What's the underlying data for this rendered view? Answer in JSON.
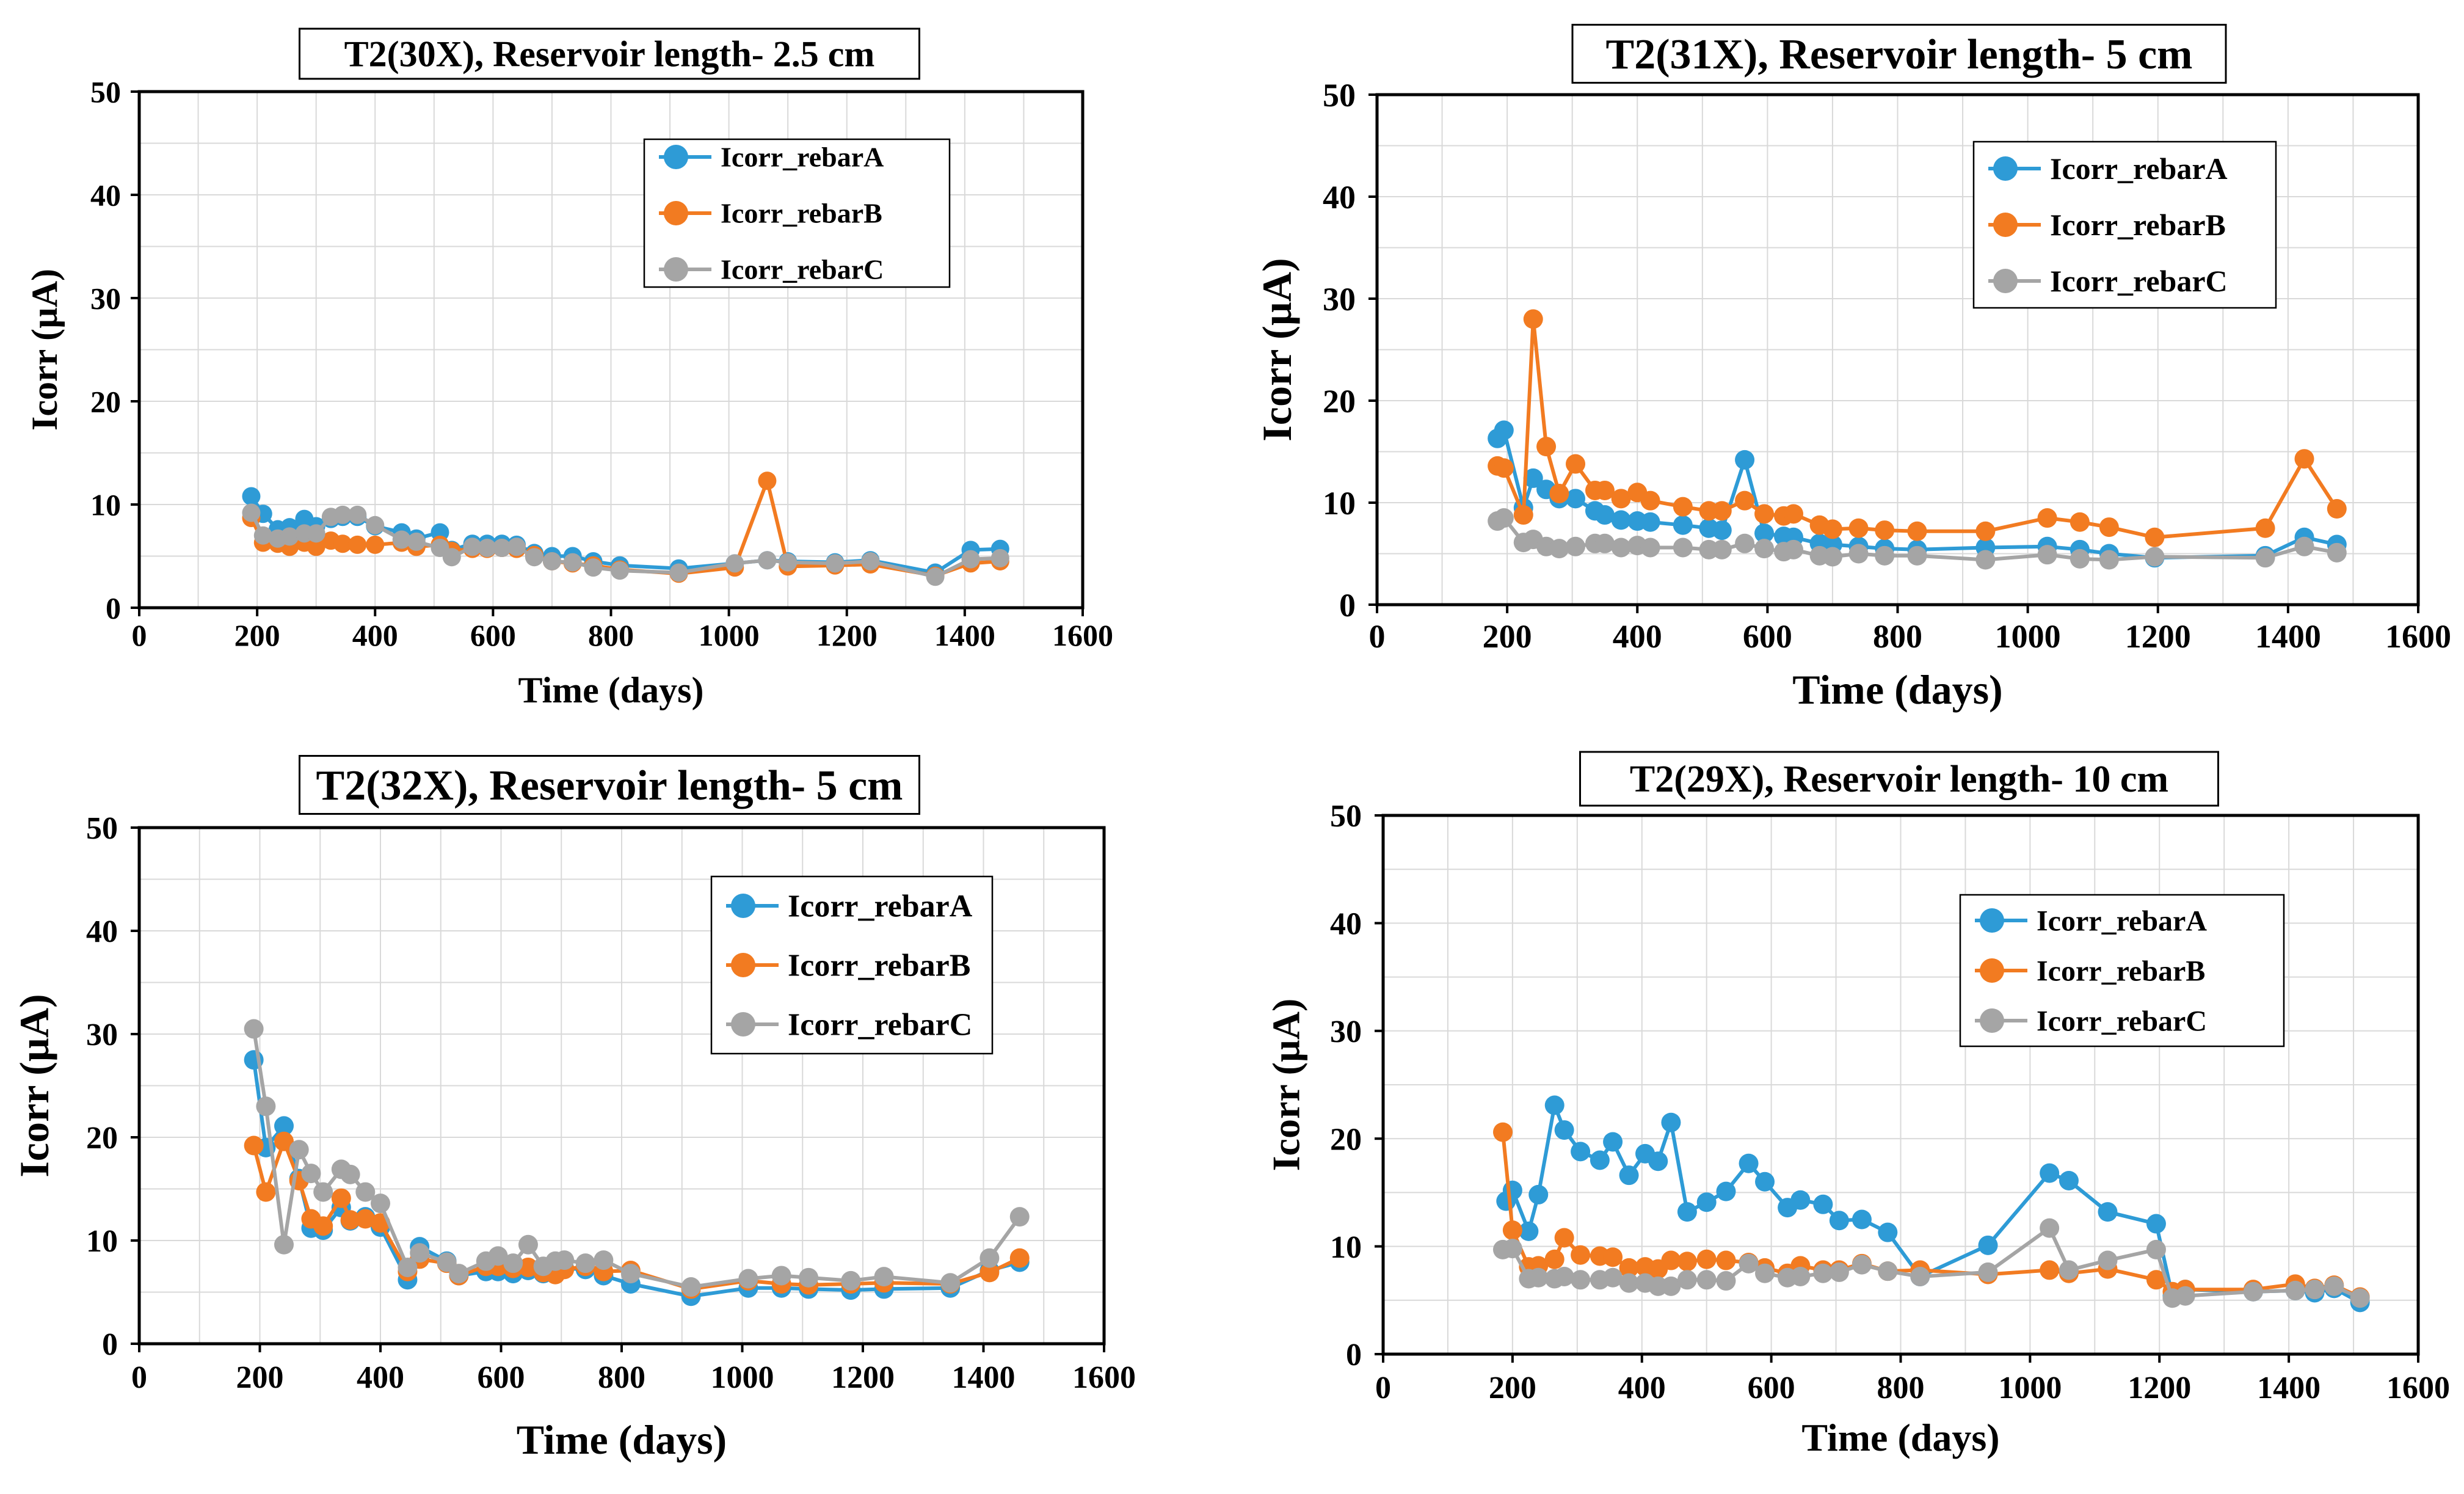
{
  "colors": {
    "rebarA": "#2e9bd6",
    "rebarB": "#f27b21",
    "rebarC": "#a5a5a5",
    "grid": "#d9d9d9"
  },
  "chart_data": [
    {
      "type": "line",
      "title": "T2(30X), Reservoir length- 2.5 cm",
      "xlabel": "Time (days)",
      "ylabel": "Icorr (µA)",
      "xlim": [
        0,
        1600
      ],
      "ylim": [
        0,
        50
      ],
      "xticks": [
        "0",
        "200",
        "400",
        "600",
        "800",
        "1000",
        "1200",
        "1400",
        "1600"
      ],
      "yticks": [
        "0",
        "10",
        "20",
        "30",
        "40",
        "50"
      ],
      "legend": [
        "Icorr_rebarA",
        "Icorr_rebarB",
        "Icorr_rebarC"
      ],
      "series": [
        {
          "name": "Icorr_rebarA",
          "color": "rebarA",
          "x": [
            190,
            210,
            235,
            255,
            280,
            300,
            325,
            345,
            370,
            400,
            445,
            470,
            510,
            530,
            565,
            590,
            615,
            640,
            670,
            700,
            735,
            770,
            815,
            915,
            1010,
            1065,
            1100,
            1180,
            1240,
            1350,
            1410,
            1460
          ],
          "y": [
            10.8,
            9.1,
            7.6,
            7.8,
            8.6,
            7.9,
            8.6,
            8.8,
            8.8,
            7.9,
            7.3,
            6.7,
            7.3,
            5.6,
            6.2,
            6.2,
            6.2,
            6.1,
            5.3,
            5.0,
            5.0,
            4.5,
            4.1,
            3.8,
            4.3,
            4.6,
            4.5,
            4.4,
            4.6,
            3.4,
            5.6,
            5.7
          ]
        },
        {
          "name": "Icorr_rebarB",
          "color": "rebarB",
          "x": [
            190,
            210,
            235,
            255,
            280,
            300,
            325,
            345,
            370,
            400,
            445,
            470,
            510,
            530,
            565,
            590,
            615,
            640,
            670,
            700,
            735,
            770,
            815,
            915,
            1010,
            1065,
            1100,
            1180,
            1240,
            1350,
            1410,
            1460
          ],
          "y": [
            8.7,
            6.3,
            6.2,
            5.9,
            6.3,
            5.9,
            6.5,
            6.2,
            6.1,
            6.1,
            6.3,
            5.9,
            6.1,
            5.5,
            5.7,
            5.7,
            5.8,
            5.7,
            5.1,
            4.5,
            4.3,
            4.1,
            3.7,
            3.3,
            3.9,
            12.3,
            4.0,
            4.1,
            4.2,
            3.1,
            4.3,
            4.5
          ]
        },
        {
          "name": "Icorr_rebarC",
          "color": "rebarC",
          "x": [
            190,
            210,
            235,
            255,
            280,
            300,
            325,
            345,
            370,
            400,
            445,
            470,
            510,
            530,
            565,
            590,
            615,
            640,
            670,
            700,
            735,
            770,
            815,
            915,
            1010,
            1065,
            1100,
            1180,
            1240,
            1350,
            1410,
            1460
          ],
          "y": [
            9.2,
            7.0,
            6.7,
            6.9,
            7.2,
            7.2,
            8.8,
            9.0,
            9.0,
            8.0,
            6.6,
            6.4,
            5.8,
            4.9,
            5.9,
            5.8,
            5.8,
            5.9,
            4.9,
            4.5,
            4.4,
            3.9,
            3.6,
            3.4,
            4.3,
            4.6,
            4.4,
            4.3,
            4.5,
            3.0,
            4.7,
            4.8
          ]
        }
      ]
    },
    {
      "type": "line",
      "title": "T2(31X), Reservoir length- 5 cm",
      "xlabel": "Time (days)",
      "ylabel": "Icorr (µA)",
      "xlim": [
        0,
        1600
      ],
      "ylim": [
        0,
        50
      ],
      "xticks": [
        "0",
        "200",
        "400",
        "600",
        "800",
        "1000",
        "1200",
        "1400",
        "1600"
      ],
      "yticks": [
        "0",
        "10",
        "20",
        "30",
        "40",
        "50"
      ],
      "legend": [
        "Icorr_rebarA",
        "Icorr_rebarB",
        "Icorr_rebarC"
      ],
      "series": [
        {
          "name": "Icorr_rebarA",
          "color": "rebarA",
          "x": [
            185,
            195,
            225,
            240,
            260,
            280,
            305,
            335,
            350,
            375,
            400,
            420,
            470,
            510,
            530,
            565,
            595,
            625,
            640,
            680,
            700,
            740,
            780,
            830,
            935,
            1030,
            1080,
            1125,
            1195,
            1365,
            1425,
            1475
          ],
          "y": [
            16.3,
            17.1,
            9.5,
            12.4,
            11.3,
            10.4,
            10.4,
            9.2,
            8.8,
            8.3,
            8.2,
            8.1,
            7.8,
            7.5,
            7.3,
            14.2,
            7.0,
            6.7,
            6.6,
            6.0,
            5.9,
            5.7,
            5.5,
            5.4,
            5.6,
            5.7,
            5.4,
            5.0,
            4.6,
            4.8,
            6.6,
            5.9
          ]
        },
        {
          "name": "Icorr_rebarB",
          "color": "rebarB",
          "x": [
            185,
            195,
            225,
            240,
            260,
            280,
            305,
            335,
            350,
            375,
            400,
            420,
            470,
            510,
            530,
            565,
            595,
            625,
            640,
            680,
            700,
            740,
            780,
            830,
            935,
            1030,
            1080,
            1125,
            1195,
            1365,
            1425,
            1475
          ],
          "y": [
            13.6,
            13.4,
            8.8,
            28.0,
            15.5,
            10.9,
            13.8,
            11.2,
            11.2,
            10.4,
            11.0,
            10.2,
            9.6,
            9.2,
            9.2,
            10.2,
            8.9,
            8.7,
            8.9,
            7.8,
            7.4,
            7.5,
            7.3,
            7.2,
            7.2,
            8.5,
            8.1,
            7.6,
            6.6,
            7.5,
            14.3,
            9.4
          ]
        },
        {
          "name": "Icorr_rebarC",
          "color": "rebarC",
          "x": [
            185,
            195,
            225,
            240,
            260,
            280,
            305,
            335,
            350,
            375,
            400,
            420,
            470,
            510,
            530,
            565,
            595,
            625,
            640,
            680,
            700,
            740,
            780,
            830,
            935,
            1030,
            1080,
            1125,
            1195,
            1365,
            1425,
            1475
          ],
          "y": [
            8.2,
            8.5,
            6.1,
            6.4,
            5.7,
            5.5,
            5.7,
            6.0,
            6.0,
            5.6,
            5.8,
            5.6,
            5.6,
            5.4,
            5.4,
            6.0,
            5.5,
            5.2,
            5.4,
            4.8,
            4.7,
            5.0,
            4.8,
            4.8,
            4.4,
            4.9,
            4.5,
            4.4,
            4.7,
            4.6,
            5.7,
            5.1
          ]
        }
      ]
    },
    {
      "type": "line",
      "title": "T2(32X), Reservoir length- 5 cm",
      "xlabel": "Time (days)",
      "ylabel": "Icorr (µA)",
      "xlim": [
        0,
        1600
      ],
      "ylim": [
        0,
        50
      ],
      "xticks": [
        "0",
        "200",
        "400",
        "600",
        "800",
        "1000",
        "1200",
        "1400",
        "1600"
      ],
      "yticks": [
        "0",
        "10",
        "20",
        "30",
        "40",
        "50"
      ],
      "legend": [
        "Icorr_rebarA",
        "Icorr_rebarB",
        "Icorr_rebarC"
      ],
      "series": [
        {
          "name": "Icorr_rebarA",
          "color": "rebarA",
          "x": [
            190,
            210,
            240,
            265,
            285,
            305,
            335,
            350,
            375,
            400,
            445,
            465,
            510,
            530,
            575,
            595,
            620,
            645,
            670,
            690,
            705,
            740,
            770,
            815,
            915,
            1010,
            1065,
            1110,
            1180,
            1235,
            1345,
            1410,
            1460
          ],
          "y": [
            27.5,
            19.0,
            21.1,
            16.0,
            11.2,
            11.0,
            13.2,
            11.9,
            12.3,
            11.3,
            6.2,
            9.4,
            8.0,
            6.6,
            7.0,
            7.0,
            6.8,
            7.1,
            6.8,
            6.8,
            7.3,
            7.2,
            6.6,
            5.8,
            4.6,
            5.4,
            5.4,
            5.3,
            5.2,
            5.3,
            5.4,
            7.1,
            7.9
          ]
        },
        {
          "name": "Icorr_rebarB",
          "color": "rebarB",
          "x": [
            190,
            210,
            240,
            265,
            285,
            305,
            335,
            350,
            375,
            400,
            445,
            465,
            510,
            530,
            575,
            595,
            620,
            645,
            670,
            690,
            705,
            740,
            770,
            815,
            915,
            1010,
            1065,
            1110,
            1180,
            1235,
            1345,
            1410,
            1460
          ],
          "y": [
            19.2,
            14.7,
            19.6,
            15.8,
            12.1,
            11.4,
            14.1,
            12.0,
            12.1,
            11.7,
            7.0,
            8.2,
            7.8,
            6.6,
            7.5,
            7.5,
            7.3,
            7.4,
            6.9,
            6.7,
            7.2,
            7.5,
            7.0,
            7.1,
            5.3,
            6.1,
            5.8,
            5.7,
            5.8,
            5.9,
            5.8,
            6.9,
            8.3
          ]
        },
        {
          "name": "Icorr_rebarC",
          "color": "rebarC",
          "x": [
            190,
            210,
            240,
            265,
            285,
            305,
            335,
            350,
            375,
            400,
            445,
            465,
            510,
            530,
            575,
            595,
            620,
            645,
            670,
            690,
            705,
            740,
            770,
            815,
            915,
            1010,
            1065,
            1110,
            1180,
            1235,
            1345,
            1410,
            1460
          ],
          "y": [
            30.5,
            23.0,
            9.6,
            18.8,
            16.5,
            14.7,
            16.9,
            16.4,
            14.7,
            13.6,
            7.4,
            8.8,
            7.9,
            6.8,
            8.0,
            8.5,
            7.8,
            9.6,
            7.5,
            8.0,
            8.1,
            7.8,
            8.1,
            6.8,
            5.5,
            6.3,
            6.6,
            6.4,
            6.1,
            6.5,
            5.9,
            8.3,
            12.3
          ]
        }
      ]
    },
    {
      "type": "line",
      "title": "T2(29X), Reservoir length- 10 cm",
      "xlabel": "Time (days)",
      "ylabel": "Icorr (µA)",
      "xlim": [
        0,
        1600
      ],
      "ylim": [
        0,
        50
      ],
      "xticks": [
        "0",
        "200",
        "400",
        "600",
        "800",
        "1000",
        "1200",
        "1400",
        "1600"
      ],
      "yticks": [
        "0",
        "10",
        "20",
        "30",
        "40",
        "50"
      ],
      "legend": [
        "Icorr_rebarA",
        "Icorr_rebarB",
        "Icorr_rebarC"
      ],
      "series": [
        {
          "name": "Icorr_rebarA",
          "color": "rebarA",
          "x": [
            190,
            200,
            225,
            240,
            265,
            280,
            305,
            335,
            355,
            380,
            405,
            425,
            445,
            470,
            500,
            530,
            565,
            590,
            625,
            645,
            680,
            705,
            740,
            780,
            830,
            935,
            1030,
            1060,
            1120,
            1195,
            1220,
            1240,
            1345,
            1410,
            1440,
            1470,
            1510
          ],
          "y": [
            14.2,
            15.2,
            11.4,
            14.8,
            23.1,
            20.8,
            18.8,
            18.0,
            19.7,
            16.6,
            18.6,
            17.9,
            21.5,
            13.2,
            14.1,
            15.1,
            17.7,
            16.0,
            13.6,
            14.3,
            13.9,
            12.4,
            12.5,
            11.3,
            7.2,
            10.1,
            16.8,
            16.1,
            13.2,
            12.1,
            5.4,
            6.0,
            5.8,
            5.9,
            5.7,
            6.1,
            4.8
          ]
        },
        {
          "name": "Icorr_rebarB",
          "color": "rebarB",
          "x": [
            185,
            200,
            225,
            240,
            265,
            280,
            305,
            335,
            355,
            380,
            405,
            425,
            445,
            470,
            500,
            530,
            565,
            590,
            625,
            645,
            680,
            705,
            740,
            780,
            830,
            935,
            1030,
            1060,
            1120,
            1195,
            1220,
            1240,
            1345,
            1410,
            1440,
            1470,
            1510
          ],
          "y": [
            20.6,
            11.5,
            8.1,
            8.2,
            8.8,
            10.8,
            9.2,
            9.1,
            9.0,
            8.0,
            8.1,
            7.9,
            8.7,
            8.6,
            8.8,
            8.7,
            8.5,
            8.0,
            7.5,
            8.2,
            7.8,
            7.8,
            8.4,
            7.7,
            7.8,
            7.4,
            7.8,
            7.5,
            7.9,
            6.9,
            5.8,
            6.0,
            6.0,
            6.5,
            6.1,
            6.4,
            5.3
          ]
        },
        {
          "name": "Icorr_rebarC",
          "color": "rebarC",
          "x": [
            185,
            200,
            225,
            240,
            265,
            280,
            305,
            335,
            355,
            380,
            405,
            425,
            445,
            470,
            500,
            530,
            565,
            590,
            625,
            645,
            680,
            705,
            740,
            780,
            830,
            935,
            1030,
            1060,
            1120,
            1195,
            1220,
            1240,
            1345,
            1410,
            1440,
            1470,
            1510
          ],
          "y": [
            9.7,
            9.8,
            7.0,
            7.1,
            7.0,
            7.2,
            6.9,
            6.9,
            7.1,
            6.6,
            6.6,
            6.3,
            6.3,
            6.9,
            6.9,
            6.8,
            8.4,
            7.5,
            7.1,
            7.2,
            7.5,
            7.6,
            8.3,
            7.7,
            7.2,
            7.6,
            11.7,
            7.8,
            8.7,
            9.7,
            5.2,
            5.4,
            5.8,
            5.9,
            6.0,
            6.3,
            5.2
          ]
        }
      ]
    }
  ]
}
